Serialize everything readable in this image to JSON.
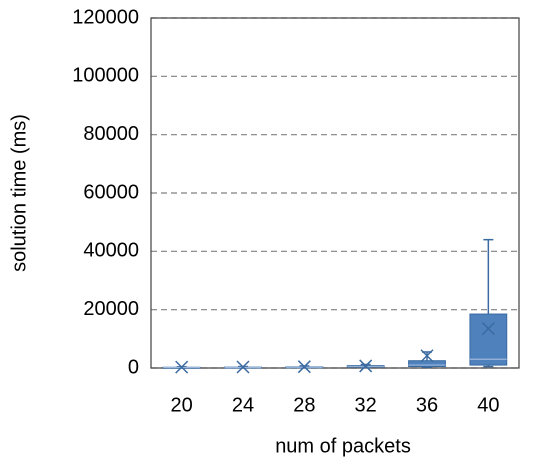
{
  "chart_data": {
    "type": "box",
    "x_label": "num of packets",
    "y_label": "solution time (ms)",
    "categories": [
      "20",
      "24",
      "28",
      "32",
      "36",
      "40"
    ],
    "min": [
      50,
      60,
      80,
      150,
      300,
      500
    ],
    "q1": [
      100,
      120,
      150,
      300,
      500,
      1000
    ],
    "median": [
      150,
      180,
      250,
      450,
      1000,
      3000
    ],
    "q3": [
      250,
      300,
      400,
      800,
      2500,
      18500
    ],
    "max": [
      400,
      500,
      700,
      1200,
      5500,
      44000
    ],
    "mean": [
      300,
      350,
      450,
      700,
      4200,
      13500
    ],
    "color": "#4f81bd",
    "ylim": [
      0,
      120000
    ],
    "yticks": [
      0,
      20000,
      40000,
      60000,
      80000,
      100000,
      120000
    ],
    "grid": true
  }
}
